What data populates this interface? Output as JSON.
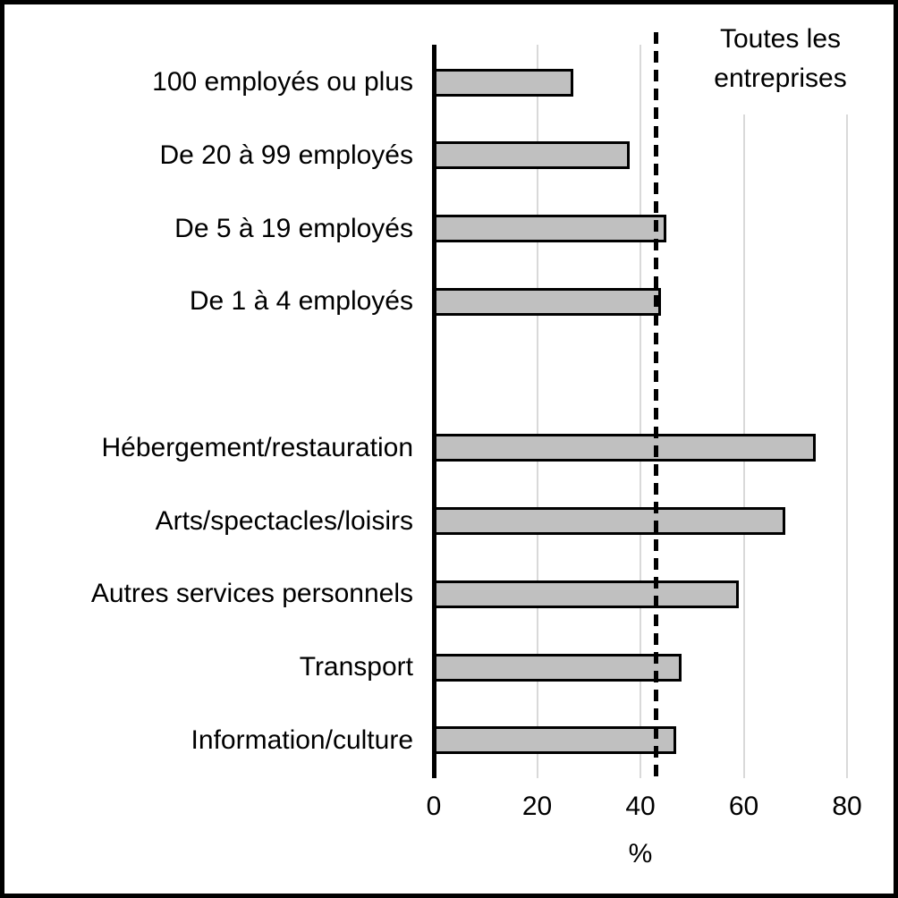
{
  "chart_data": {
    "type": "bar",
    "orientation": "horizontal",
    "xlabel": "%",
    "x_ticks": [
      "0",
      "20",
      "40",
      "60",
      "80"
    ],
    "x_tick_values": [
      0,
      20,
      40,
      60,
      80
    ],
    "xlim": [
      0,
      87
    ],
    "grid": true,
    "legend": false,
    "categories": [
      "100 employés ou plus",
      "De 20 à 99 employés",
      "De 5 à 19 employés",
      "De 1 à 4 employés",
      "Hébergement/restauration",
      "Arts/spectacles/loisirs",
      "Autres services personnels",
      "Transport",
      "Information/culture"
    ],
    "values": [
      27,
      38,
      45,
      44,
      74,
      68,
      59,
      48,
      47
    ],
    "group_break_after_index": 3,
    "reference_line": {
      "label": "Toutes les entreprises",
      "lines": [
        "Toutes les",
        "entreprises"
      ],
      "value": 43,
      "style": "dashed"
    },
    "colors": {
      "bar_fill": "#c0c0c0",
      "bar_border": "#000000",
      "gridline": "#d9d9d9",
      "axis": "#000000",
      "reference_line": "#000000",
      "text": "#000000",
      "background": "#ffffff"
    }
  }
}
